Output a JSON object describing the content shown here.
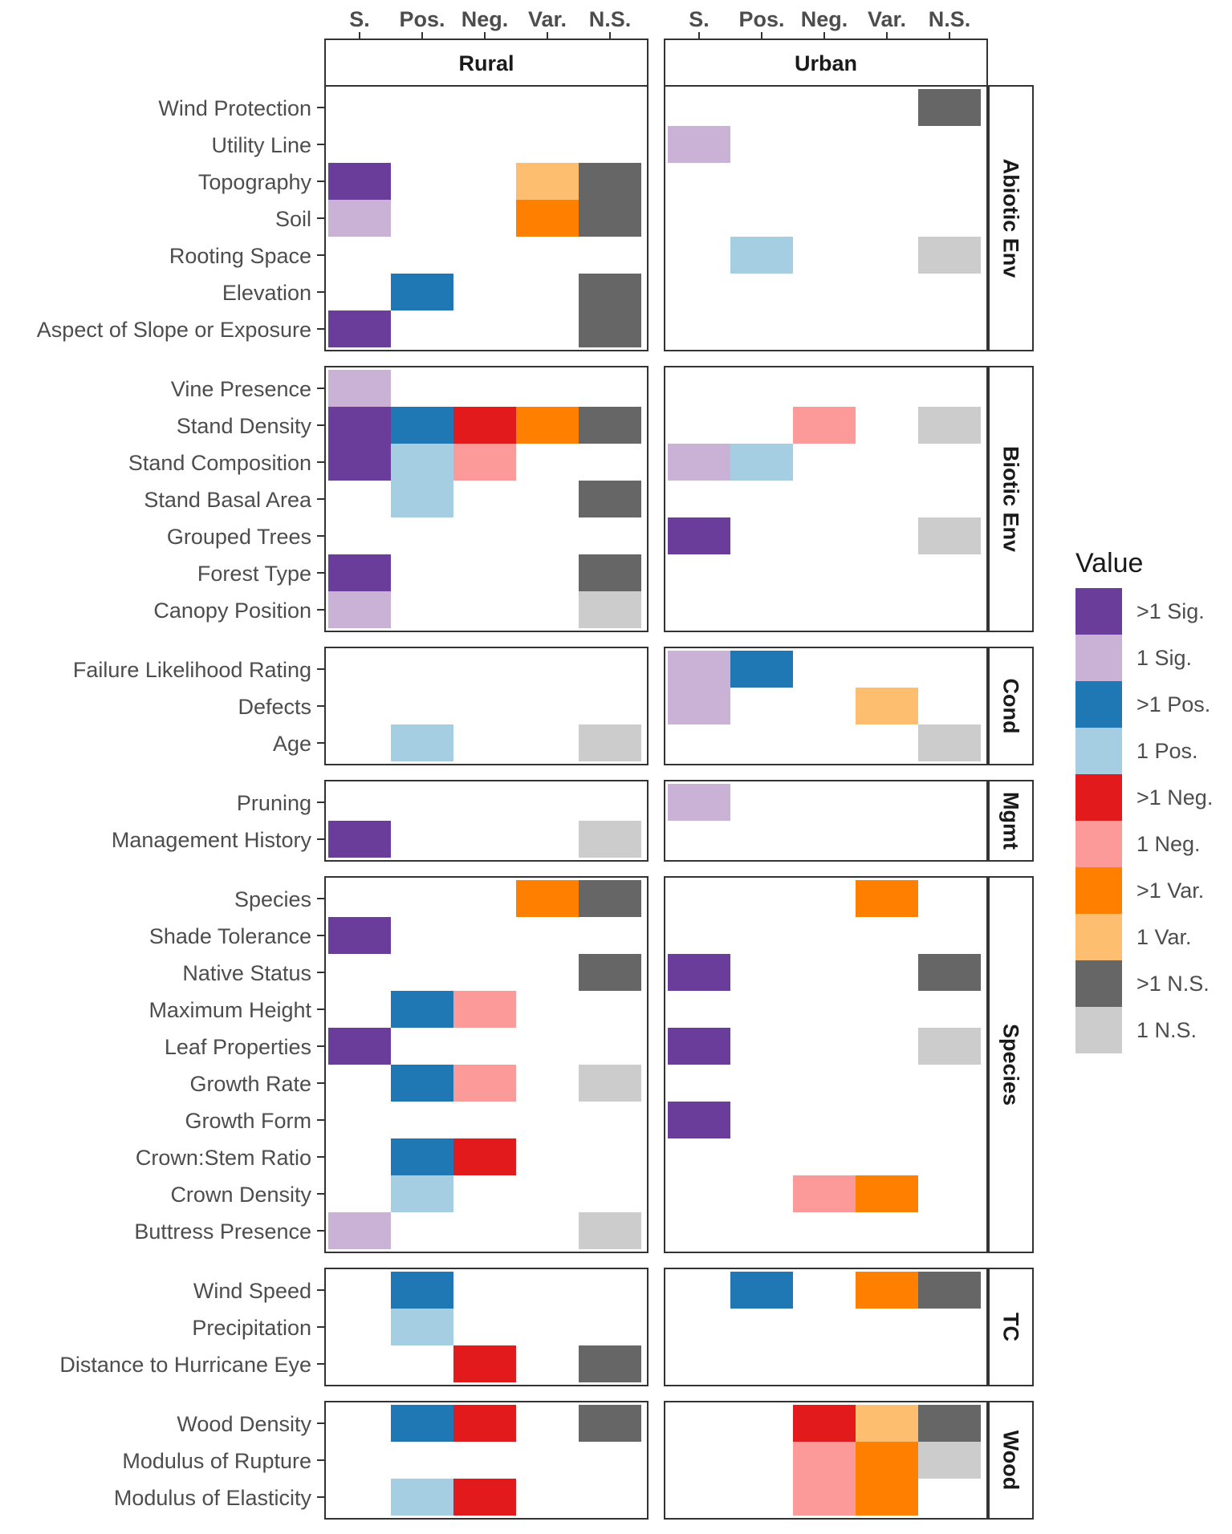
{
  "chart_data": {
    "type": "heatmap",
    "x_labels": [
      "S.",
      "Pos.",
      "Neg.",
      "Var.",
      "N.S."
    ],
    "facet_columns": [
      "Rural",
      "Urban"
    ],
    "legend": {
      "title": "Value",
      "entries": [
        {
          "key": ">1 Sig.",
          "label": ">1 Sig.",
          "color": "#6a3d9a"
        },
        {
          "key": "1 Sig.",
          "label": "1 Sig.",
          "color": "#cab2d6"
        },
        {
          "key": ">1 Pos.",
          "label": ">1 Pos.",
          "color": "#1f78b4"
        },
        {
          "key": "1 Pos.",
          "label": "1 Pos.",
          "color": "#a6cee3"
        },
        {
          "key": ">1 Neg.",
          "label": ">1 Neg.",
          "color": "#e31a1c"
        },
        {
          "key": "1 Neg.",
          "label": "1 Neg.",
          "color": "#fb9a99"
        },
        {
          "key": ">1 Var.",
          "label": ">1 Var.",
          "color": "#ff7f00"
        },
        {
          "key": "1 Var.",
          "label": "1 Var.",
          "color": "#fdbf6f"
        },
        {
          "key": ">1 N.S.",
          "label": ">1 N.S.",
          "color": "#666666"
        },
        {
          "key": "1 N.S.",
          "label": "1 N.S.",
          "color": "#cccccc"
        }
      ]
    },
    "groups": [
      {
        "name": "Abiotic Env",
        "rows": [
          {
            "label": "Wind Protection",
            "rural": [
              null,
              null,
              null,
              null,
              null
            ],
            "urban": [
              null,
              null,
              null,
              null,
              ">1 N.S."
            ]
          },
          {
            "label": "Utility Line",
            "rural": [
              null,
              null,
              null,
              null,
              null
            ],
            "urban": [
              "1 Sig.",
              null,
              null,
              null,
              null
            ]
          },
          {
            "label": "Topography",
            "rural": [
              ">1 Sig.",
              null,
              null,
              "1 Var.",
              ">1 N.S."
            ],
            "urban": [
              null,
              null,
              null,
              null,
              null
            ]
          },
          {
            "label": "Soil",
            "rural": [
              "1 Sig.",
              null,
              null,
              ">1 Var.",
              ">1 N.S."
            ],
            "urban": [
              null,
              null,
              null,
              null,
              null
            ]
          },
          {
            "label": "Rooting Space",
            "rural": [
              null,
              null,
              null,
              null,
              null
            ],
            "urban": [
              null,
              "1 Pos.",
              null,
              null,
              "1 N.S."
            ]
          },
          {
            "label": "Elevation",
            "rural": [
              null,
              ">1 Pos.",
              null,
              null,
              ">1 N.S."
            ],
            "urban": [
              null,
              null,
              null,
              null,
              null
            ]
          },
          {
            "label": "Aspect of Slope or Exposure",
            "rural": [
              ">1 Sig.",
              null,
              null,
              null,
              ">1 N.S."
            ],
            "urban": [
              null,
              null,
              null,
              null,
              null
            ]
          }
        ]
      },
      {
        "name": "Biotic Env",
        "rows": [
          {
            "label": "Vine Presence",
            "rural": [
              "1 Sig.",
              null,
              null,
              null,
              null
            ],
            "urban": [
              null,
              null,
              null,
              null,
              null
            ]
          },
          {
            "label": "Stand Density",
            "rural": [
              ">1 Sig.",
              ">1 Pos.",
              ">1 Neg.",
              ">1 Var.",
              ">1 N.S."
            ],
            "urban": [
              null,
              null,
              "1 Neg.",
              null,
              "1 N.S."
            ]
          },
          {
            "label": "Stand Composition",
            "rural": [
              ">1 Sig.",
              "1 Pos.",
              "1 Neg.",
              null,
              null
            ],
            "urban": [
              "1 Sig.",
              "1 Pos.",
              null,
              null,
              null
            ]
          },
          {
            "label": "Stand Basal Area",
            "rural": [
              null,
              "1 Pos.",
              null,
              null,
              ">1 N.S."
            ],
            "urban": [
              null,
              null,
              null,
              null,
              null
            ]
          },
          {
            "label": "Grouped Trees",
            "rural": [
              null,
              null,
              null,
              null,
              null
            ],
            "urban": [
              ">1 Sig.",
              null,
              null,
              null,
              "1 N.S."
            ]
          },
          {
            "label": "Forest Type",
            "rural": [
              ">1 Sig.",
              null,
              null,
              null,
              ">1 N.S."
            ],
            "urban": [
              null,
              null,
              null,
              null,
              null
            ]
          },
          {
            "label": "Canopy Position",
            "rural": [
              "1 Sig.",
              null,
              null,
              null,
              "1 N.S."
            ],
            "urban": [
              null,
              null,
              null,
              null,
              null
            ]
          }
        ]
      },
      {
        "name": "Cond",
        "rows": [
          {
            "label": "Failure Likelihood Rating",
            "rural": [
              null,
              null,
              null,
              null,
              null
            ],
            "urban": [
              "1 Sig.",
              ">1 Pos.",
              null,
              null,
              null
            ]
          },
          {
            "label": "Defects",
            "rural": [
              null,
              null,
              null,
              null,
              null
            ],
            "urban": [
              "1 Sig.",
              null,
              null,
              "1 Var.",
              null
            ]
          },
          {
            "label": "Age",
            "rural": [
              null,
              "1 Pos.",
              null,
              null,
              "1 N.S."
            ],
            "urban": [
              null,
              null,
              null,
              null,
              "1 N.S."
            ]
          }
        ]
      },
      {
        "name": "Mgmt",
        "rows": [
          {
            "label": "Pruning",
            "rural": [
              null,
              null,
              null,
              null,
              null
            ],
            "urban": [
              "1 Sig.",
              null,
              null,
              null,
              null
            ]
          },
          {
            "label": "Management History",
            "rural": [
              ">1 Sig.",
              null,
              null,
              null,
              "1 N.S."
            ],
            "urban": [
              null,
              null,
              null,
              null,
              null
            ]
          }
        ]
      },
      {
        "name": "Species",
        "rows": [
          {
            "label": "Species",
            "rural": [
              null,
              null,
              null,
              ">1 Var.",
              ">1 N.S."
            ],
            "urban": [
              null,
              null,
              null,
              ">1 Var.",
              null
            ]
          },
          {
            "label": "Shade Tolerance",
            "rural": [
              ">1 Sig.",
              null,
              null,
              null,
              null
            ],
            "urban": [
              null,
              null,
              null,
              null,
              null
            ]
          },
          {
            "label": "Native Status",
            "rural": [
              null,
              null,
              null,
              null,
              ">1 N.S."
            ],
            "urban": [
              ">1 Sig.",
              null,
              null,
              null,
              ">1 N.S."
            ]
          },
          {
            "label": "Maximum Height",
            "rural": [
              null,
              ">1 Pos.",
              "1 Neg.",
              null,
              null
            ],
            "urban": [
              null,
              null,
              null,
              null,
              null
            ]
          },
          {
            "label": "Leaf Properties",
            "rural": [
              ">1 Sig.",
              null,
              null,
              null,
              null
            ],
            "urban": [
              ">1 Sig.",
              null,
              null,
              null,
              "1 N.S."
            ]
          },
          {
            "label": "Growth Rate",
            "rural": [
              null,
              ">1 Pos.",
              "1 Neg.",
              null,
              "1 N.S."
            ],
            "urban": [
              null,
              null,
              null,
              null,
              null
            ]
          },
          {
            "label": "Growth Form",
            "rural": [
              null,
              null,
              null,
              null,
              null
            ],
            "urban": [
              ">1 Sig.",
              null,
              null,
              null,
              null
            ]
          },
          {
            "label": "Crown:Stem Ratio",
            "rural": [
              null,
              ">1 Pos.",
              ">1 Neg.",
              null,
              null
            ],
            "urban": [
              null,
              null,
              null,
              null,
              null
            ]
          },
          {
            "label": "Crown Density",
            "rural": [
              null,
              "1 Pos.",
              null,
              null,
              null
            ],
            "urban": [
              null,
              null,
              "1 Neg.",
              ">1 Var.",
              null
            ]
          },
          {
            "label": "Buttress Presence",
            "rural": [
              "1 Sig.",
              null,
              null,
              null,
              "1 N.S."
            ],
            "urban": [
              null,
              null,
              null,
              null,
              null
            ]
          }
        ]
      },
      {
        "name": "TC",
        "rows": [
          {
            "label": "Wind Speed",
            "rural": [
              null,
              ">1 Pos.",
              null,
              null,
              null
            ],
            "urban": [
              null,
              ">1 Pos.",
              null,
              ">1 Var.",
              ">1 N.S."
            ]
          },
          {
            "label": "Precipitation",
            "rural": [
              null,
              "1 Pos.",
              null,
              null,
              null
            ],
            "urban": [
              null,
              null,
              null,
              null,
              null
            ]
          },
          {
            "label": "Distance to Hurricane Eye",
            "rural": [
              null,
              null,
              ">1 Neg.",
              null,
              ">1 N.S."
            ],
            "urban": [
              null,
              null,
              null,
              null,
              null
            ]
          }
        ]
      },
      {
        "name": "Wood",
        "rows": [
          {
            "label": "Wood Density",
            "rural": [
              null,
              ">1 Pos.",
              ">1 Neg.",
              null,
              ">1 N.S."
            ],
            "urban": [
              null,
              null,
              ">1 Neg.",
              "1 Var.",
              ">1 N.S."
            ]
          },
          {
            "label": "Modulus of Rupture",
            "rural": [
              null,
              null,
              null,
              null,
              null
            ],
            "urban": [
              null,
              null,
              "1 Neg.",
              ">1 Var.",
              "1 N.S."
            ]
          },
          {
            "label": "Modulus of Elasticity",
            "rural": [
              null,
              "1 Pos.",
              ">1 Neg.",
              null,
              null
            ],
            "urban": [
              null,
              null,
              "1 Neg.",
              ">1 Var.",
              null
            ]
          }
        ]
      }
    ]
  }
}
